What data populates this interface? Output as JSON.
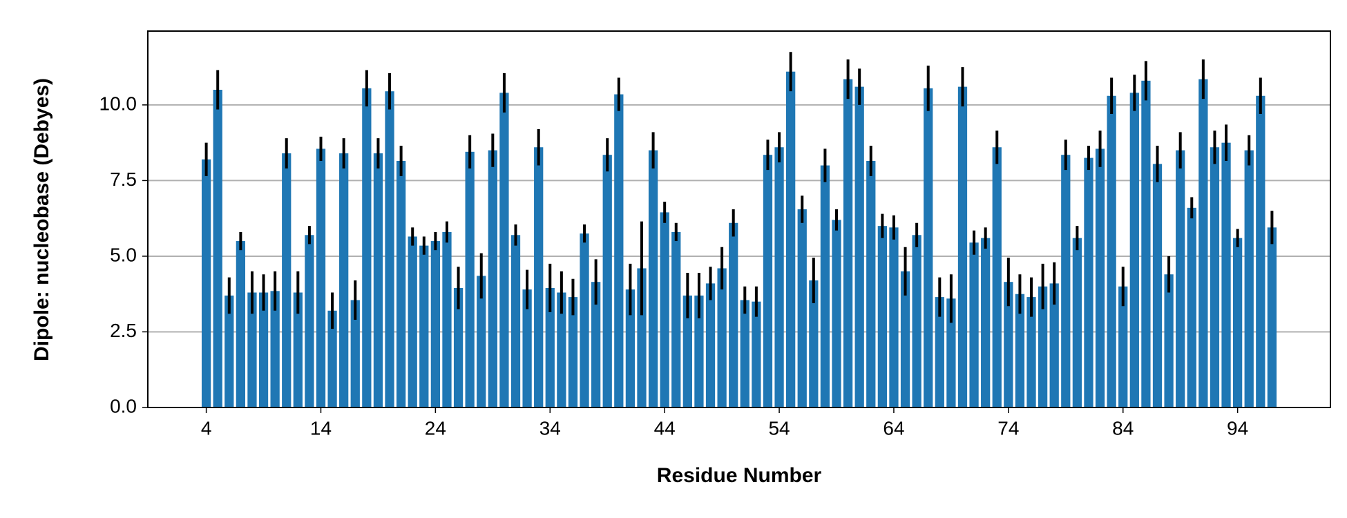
{
  "chart_data": {
    "type": "bar",
    "xlabel": "Residue Number",
    "ylabel": "Dipole: nucleobase (Debyes)",
    "x": [
      4,
      5,
      6,
      7,
      8,
      9,
      10,
      11,
      12,
      13,
      14,
      15,
      16,
      17,
      18,
      19,
      20,
      21,
      22,
      23,
      24,
      25,
      26,
      27,
      28,
      29,
      30,
      31,
      32,
      33,
      34,
      35,
      36,
      37,
      38,
      39,
      40,
      41,
      42,
      43,
      44,
      45,
      46,
      47,
      48,
      49,
      50,
      51,
      52,
      53,
      54,
      55,
      56,
      57,
      58,
      59,
      60,
      61,
      62,
      63,
      64,
      65,
      66,
      67,
      68,
      69,
      70,
      71,
      72,
      73,
      74,
      75,
      76,
      77,
      78,
      79,
      80,
      81,
      82,
      83,
      84,
      85,
      86,
      87,
      88,
      89,
      90,
      91,
      92,
      93,
      94,
      95,
      96,
      97
    ],
    "values": [
      8.2,
      10.5,
      3.7,
      5.5,
      3.8,
      3.8,
      3.85,
      8.4,
      3.8,
      5.7,
      8.55,
      3.2,
      8.4,
      3.55,
      10.55,
      8.4,
      10.45,
      8.15,
      5.65,
      5.35,
      5.5,
      5.8,
      3.95,
      8.45,
      4.35,
      8.5,
      10.4,
      5.7,
      3.9,
      8.6,
      3.95,
      3.8,
      3.65,
      5.75,
      4.15,
      8.35,
      10.35,
      3.9,
      4.6,
      8.5,
      6.45,
      5.8,
      3.7,
      3.7,
      4.1,
      4.6,
      6.1,
      3.55,
      3.5,
      8.35,
      8.6,
      11.1,
      6.55,
      4.2,
      8.0,
      6.2,
      10.85,
      10.6,
      8.15,
      6.0,
      5.95,
      4.5,
      5.7,
      10.55,
      3.65,
      3.6,
      10.6,
      5.45,
      5.6,
      8.6,
      4.15,
      3.75,
      3.65,
      4.0,
      4.1,
      8.35,
      5.6,
      8.25,
      8.55,
      10.3,
      4.0,
      10.4,
      10.8,
      8.05,
      4.4,
      8.5,
      6.6,
      10.85,
      8.6,
      8.75,
      5.6,
      8.5,
      10.3,
      5.95
    ],
    "errors": [
      0.55,
      0.65,
      0.6,
      0.3,
      0.7,
      0.6,
      0.65,
      0.5,
      0.7,
      0.3,
      0.4,
      0.6,
      0.5,
      0.65,
      0.6,
      0.5,
      0.6,
      0.5,
      0.3,
      0.3,
      0.3,
      0.35,
      0.7,
      0.55,
      0.75,
      0.55,
      0.65,
      0.35,
      0.65,
      0.6,
      0.8,
      0.7,
      0.6,
      0.3,
      0.75,
      0.55,
      0.55,
      0.85,
      1.55,
      0.6,
      0.35,
      0.3,
      0.75,
      0.75,
      0.55,
      0.7,
      0.45,
      0.45,
      0.5,
      0.5,
      0.5,
      0.65,
      0.45,
      0.75,
      0.55,
      0.35,
      0.65,
      0.6,
      0.5,
      0.4,
      0.4,
      0.8,
      0.4,
      0.75,
      0.65,
      0.8,
      0.65,
      0.4,
      0.35,
      0.55,
      0.8,
      0.65,
      0.65,
      0.75,
      0.7,
      0.5,
      0.4,
      0.4,
      0.6,
      0.6,
      0.65,
      0.6,
      0.65,
      0.6,
      0.6,
      0.6,
      0.35,
      0.65,
      0.55,
      0.6,
      0.3,
      0.5,
      0.6,
      0.55
    ],
    "color": "#1f77b4",
    "error_color": "#000000",
    "xlim": [
      -1.1,
      102.1
    ],
    "xticks": [
      4,
      14,
      24,
      34,
      44,
      54,
      64,
      74,
      84,
      94
    ],
    "ylim": [
      0,
      12.44
    ],
    "yticks": [
      {
        "value": 0,
        "label": "0.0"
      },
      2.5,
      {
        "value": 5,
        "label": "5.0"
      },
      7.5,
      {
        "value": 10,
        "label": "10.0"
      }
    ],
    "grid": "y"
  }
}
